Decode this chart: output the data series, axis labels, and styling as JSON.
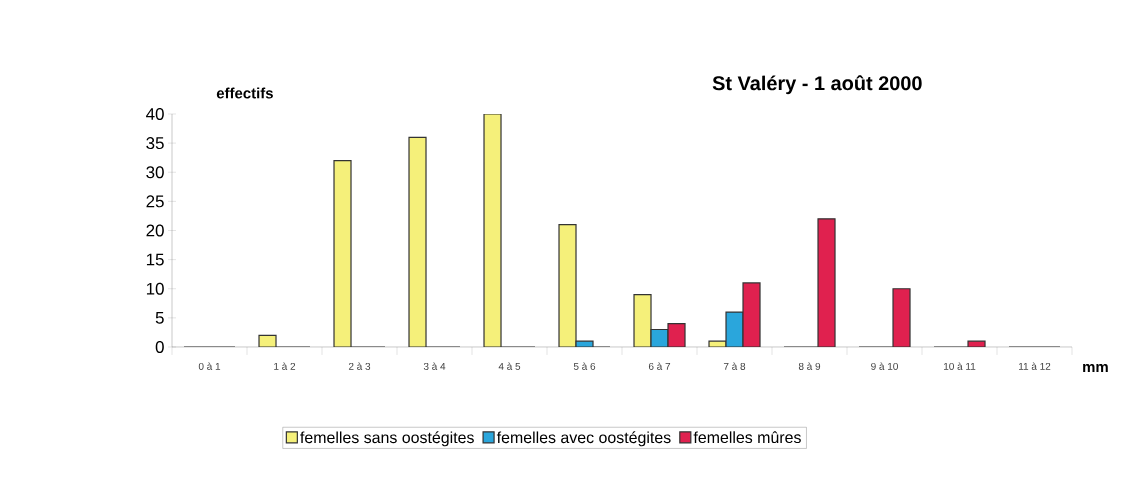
{
  "chart_data": {
    "type": "bar",
    "title": "St Valéry - 1 août 2000",
    "xlabel": "mm",
    "ylabel": "effectifs",
    "categories": [
      "0 à 1",
      "1 à 2",
      "2 à 3",
      "3 à 4",
      "4 à 5",
      "5 à 6",
      "6 à 7",
      "7 à 8",
      "8 à 9",
      "9 à 10",
      "10 à 11",
      "11 à 12"
    ],
    "series": [
      {
        "name": "femelles sans oostégites",
        "color": "#f5f07a",
        "values": [
          0,
          2,
          32,
          36,
          40,
          21,
          9,
          1,
          0,
          0,
          0,
          0
        ]
      },
      {
        "name": "femelles avec oostégites",
        "color": "#2aa6dc",
        "values": [
          0,
          0,
          0,
          0,
          0,
          1,
          3,
          6,
          0,
          0,
          0,
          0
        ]
      },
      {
        "name": "femelles mûres",
        "color": "#e0214f",
        "values": [
          0,
          0,
          0,
          0,
          0,
          0,
          4,
          11,
          22,
          10,
          1,
          0
        ]
      }
    ],
    "ylim": [
      0,
      40
    ],
    "yticks": [
      0,
      5,
      10,
      15,
      20,
      25,
      30,
      35,
      40
    ],
    "grid": false,
    "legend": "bottom"
  }
}
